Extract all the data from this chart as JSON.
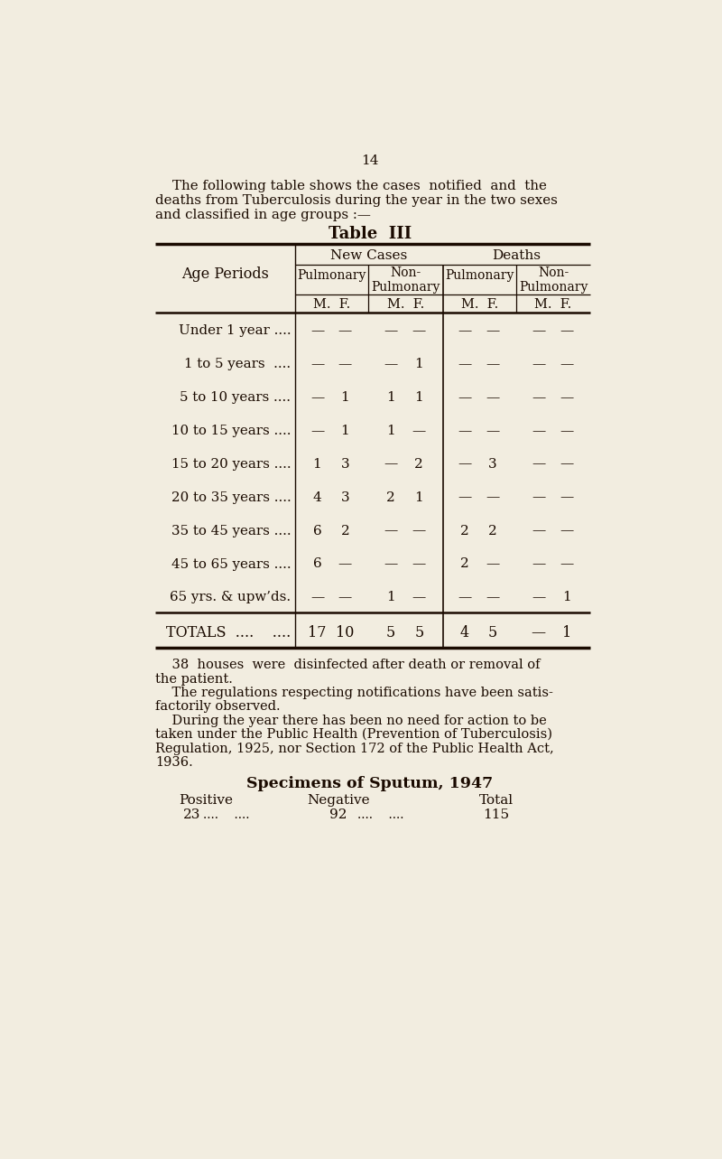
{
  "bg_color": "#f2ede0",
  "text_color": "#1a0a00",
  "page_number": "14",
  "intro_text_lines": [
    "    The following table shows the cases  notified  and  the",
    "deaths from Tuberculosis during the year in the two sexes",
    "and classified in age groups :—"
  ],
  "table_title": "Table  III",
  "row_label_header": "Age Periods",
  "age_rows": [
    "Under 1 year ....",
    "1 to 5 years  ....",
    "5 to 10 years ....",
    "10 to 15 years ....",
    "15 to 20 years ....",
    "20 to 35 years ....",
    "35 to 45 years ....",
    "45 to 65 years ....",
    "65 yrs. & upw’ds."
  ],
  "table_data": [
    [
      "—",
      "—",
      "—",
      "—",
      "—",
      "—",
      "—",
      "—"
    ],
    [
      "—",
      "—",
      "—",
      "1",
      "—",
      "—",
      "—",
      "—"
    ],
    [
      "—",
      "1",
      "1",
      "1",
      "—",
      "—",
      "—",
      "—"
    ],
    [
      "—",
      "1",
      "1",
      "—",
      "—",
      "—",
      "—",
      "—"
    ],
    [
      "1",
      "3",
      "—",
      "2",
      "—",
      "3",
      "—",
      "—"
    ],
    [
      "4",
      "3",
      "2",
      "1",
      "—",
      "—",
      "—",
      "—"
    ],
    [
      "6",
      "2",
      "—",
      "—",
      "2",
      "2",
      "—",
      "—"
    ],
    [
      "6",
      "—",
      "—",
      "—",
      "2",
      "—",
      "—",
      "—"
    ],
    [
      "—",
      "—",
      "1",
      "—",
      "—",
      "—",
      "—",
      "1"
    ]
  ],
  "totals_label": "TOTALS  ....    ....",
  "totals_data": [
    "17",
    "10",
    "5",
    "5",
    "4",
    "5",
    "—",
    "1"
  ],
  "footer_lines": [
    "    38  houses  were  disinfected after death or removal of",
    "the patient.",
    "    The regulations respecting notifications have been satis-",
    "factorily observed.",
    "    During the year there has been no need for action to be",
    "taken under the Public Health (Prevention of Tuberculosis)",
    "Regulation, 1925, nor Section 172 of the Public Health Act,",
    "1936."
  ],
  "sputum_title": "Specimens of Sputum, 1947",
  "sputum_col1_label": "Positive",
  "sputum_col2_label": "Negative",
  "sputum_col3_label": "Total",
  "sputum_col1_value": "23",
  "sputum_col2_value": "92",
  "sputum_col3_value": "115",
  "sputum_dots": "....    ...."
}
